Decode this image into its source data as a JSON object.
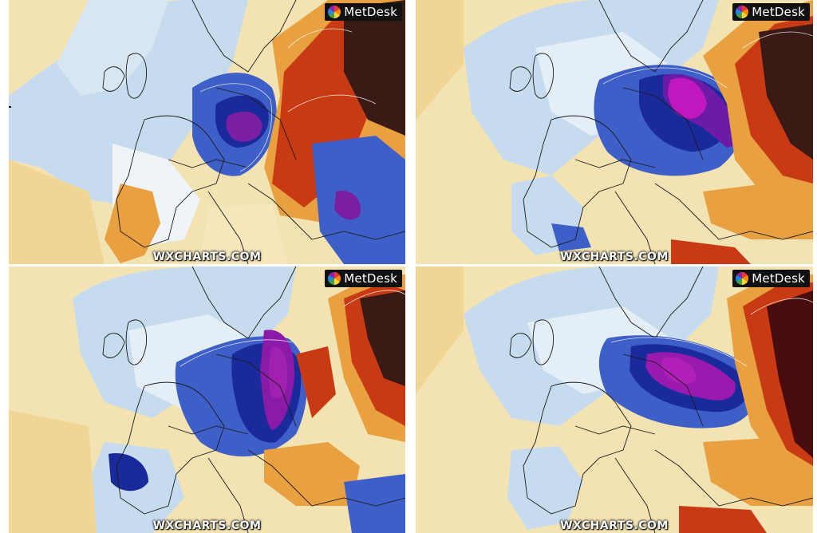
{
  "panels": [
    {
      "id": "top-left",
      "brand": "MetDesk",
      "credit": "WXCHARTS.COM",
      "cold_core_color": "#7a1fa2",
      "warm_core_color": "#3a1a14"
    },
    {
      "id": "top-right",
      "brand": "MetDesk",
      "credit": "WXCHARTS.COM",
      "cold_core_color": "#c018c0",
      "warm_core_color": "#3a1a14"
    },
    {
      "id": "bottom-left",
      "brand": "MetDesk",
      "credit": "WXCHARTS.COM",
      "cold_core_color": "#8a1aa8",
      "warm_core_color": "#3a1a14"
    },
    {
      "id": "bottom-right",
      "brand": "MetDesk",
      "credit": "WXCHARTS.COM",
      "cold_core_color": "#9a1ab0",
      "warm_core_color": "#4a0d0d"
    }
  ],
  "map_type": "temperature-anomaly",
  "palette": {
    "warm_light": "#f3e3b3",
    "warm": "#e8a040",
    "hot": "#c83a14",
    "very_hot": "#3a1a14",
    "neutral": "#ffffff",
    "cool": "#c6dcee",
    "cold": "#3f5fc8",
    "very_cold": "#1a2a9a",
    "extreme_cold": "#9a1ab0"
  }
}
